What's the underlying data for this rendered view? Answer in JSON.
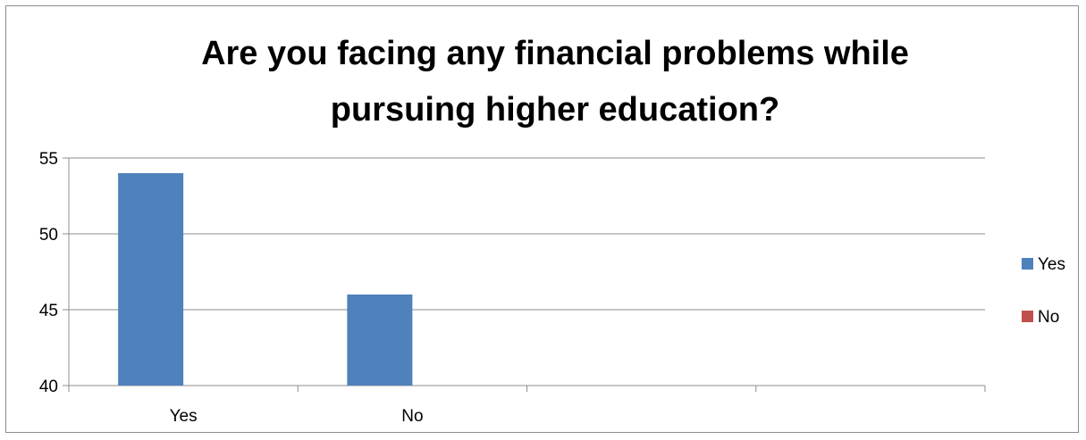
{
  "chart_data": {
    "type": "bar",
    "title_lines": [
      "Are you facing any financial problems while",
      "pursuing higher education?"
    ],
    "categories": [
      "Yes",
      "No",
      "",
      ""
    ],
    "series": [
      {
        "name": "Yes",
        "values": [
          54,
          46,
          null,
          null
        ],
        "color": "#4f81bd"
      },
      {
        "name": "No",
        "values": [
          null,
          null,
          null,
          null
        ],
        "color": "#c0504d"
      }
    ],
    "yticks": [
      55,
      50,
      45,
      40
    ],
    "ylim": [
      40,
      55
    ],
    "grid": true,
    "legend": "right"
  }
}
